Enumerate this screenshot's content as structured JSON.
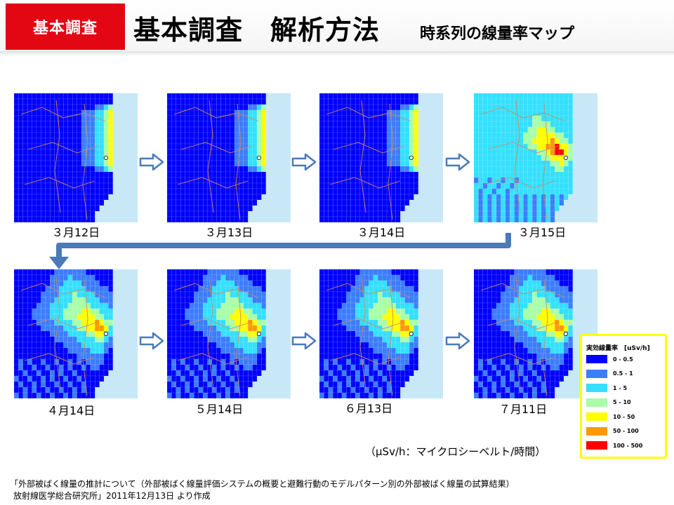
{
  "header": {
    "badge": "基本調査",
    "title": "基本調査　解析方法",
    "subtitle": "時系列の線量率マップ"
  },
  "maps": [
    {
      "date": "３月12日",
      "level": "low"
    },
    {
      "date": "３月13日",
      "level": "low"
    },
    {
      "date": "３月14日",
      "level": "low"
    },
    {
      "date": "３月15日",
      "level": "high"
    },
    {
      "date": "４月14日",
      "level": "mid"
    },
    {
      "date": "５月14日",
      "level": "mid"
    },
    {
      "date": "６月13日",
      "level": "mid"
    },
    {
      "date": "７月11日",
      "level": "mid"
    }
  ],
  "legend": {
    "title": "実効線量率　[uSv/h]",
    "items": [
      {
        "label": "0 - 0.5",
        "color": "#0000ff"
      },
      {
        "label": "0.5 - 1",
        "color": "#3c7dff"
      },
      {
        "label": "1 - 5",
        "color": "#33e0ff"
      },
      {
        "label": "5 - 10",
        "color": "#a8ffa8"
      },
      {
        "label": "10 - 50",
        "color": "#ffff00"
      },
      {
        "label": "50 - 100",
        "color": "#ff9900"
      },
      {
        "label": "100 - 500",
        "color": "#ff0000"
      }
    ]
  },
  "unit_note": "（μSv/h：マイクロシーベルト/時間）",
  "source": {
    "line1": "「外部被ばく線量の推計について（外部被ばく線量評価システムの概要と避難行動のモデルパターン別の外部被ばく線量の試算結果）",
    "line2": "放射線医学総合研究所」2011年12月13日 より作成"
  },
  "colors": {
    "badge": "#e30613",
    "sea": "#c8e8f8",
    "arrow_connector": "#4a7ab8",
    "legend_border": "#ffff00"
  }
}
